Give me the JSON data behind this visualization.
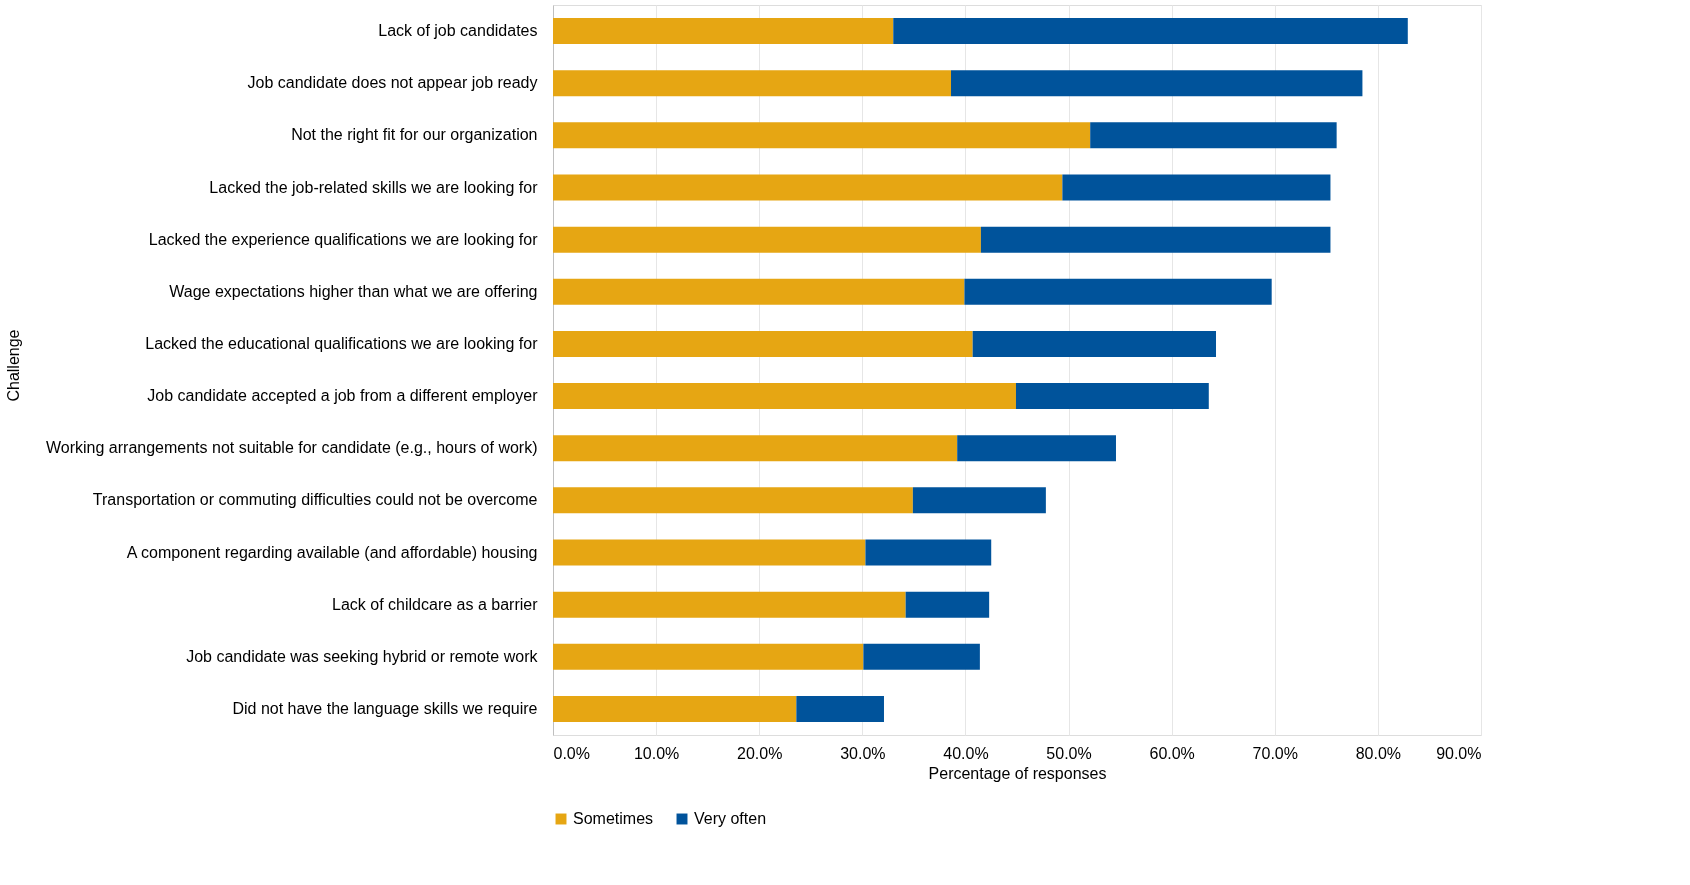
{
  "chart_data": {
    "type": "bar",
    "orientation": "horizontal",
    "stacked": true,
    "xlabel": "Percentage of responses",
    "ylabel": "Challenge",
    "categories": [
      "Lack of job candidates",
      "Job candidate does not appear job ready",
      "Not the right fit for our organization",
      "Lacked the job-related skills we are looking for",
      "Lacked the experience qualifications we are looking for",
      "Wage expectations higher than what we are offering",
      "Lacked the educational qualifications we are looking for",
      "Job candidate accepted a job from a different employer",
      "Working arrangements not suitable for candidate (e.g., hours of work)",
      "Transportation or commuting difficulties could not be overcome",
      "A component regarding available (and affordable) housing",
      "Lack of childcare as a barrier",
      "Job candidate was seeking hybrid or remote work",
      "Did not have the language skills we require"
    ],
    "series": [
      {
        "name": "Sometimes",
        "color": "#e6a613",
        "values": [
          33.0,
          38.6,
          52.1,
          49.4,
          41.5,
          39.9,
          40.7,
          44.9,
          39.2,
          34.9,
          30.3,
          34.2,
          30.1,
          23.6
        ]
      },
      {
        "name": "Very often",
        "color": "#00539b",
        "values": [
          49.9,
          39.9,
          23.9,
          26.0,
          33.9,
          29.8,
          23.6,
          18.7,
          15.4,
          12.9,
          12.2,
          8.1,
          11.3,
          8.5
        ]
      }
    ],
    "xlim": [
      0,
      90
    ],
    "xticks": [
      {
        "value": 0,
        "label": "0.0%"
      },
      {
        "value": 10,
        "label": "10.0%"
      },
      {
        "value": 20,
        "label": "20.0%"
      },
      {
        "value": 30,
        "label": "30.0%"
      },
      {
        "value": 40,
        "label": "40.0%"
      },
      {
        "value": 50,
        "label": "50.0%"
      },
      {
        "value": 60,
        "label": "60.0%"
      },
      {
        "value": 70,
        "label": "70.0%"
      },
      {
        "value": 80,
        "label": "80.0%"
      },
      {
        "value": 90,
        "label": "90.0%"
      }
    ],
    "grid": "x",
    "legend": "bottom"
  }
}
